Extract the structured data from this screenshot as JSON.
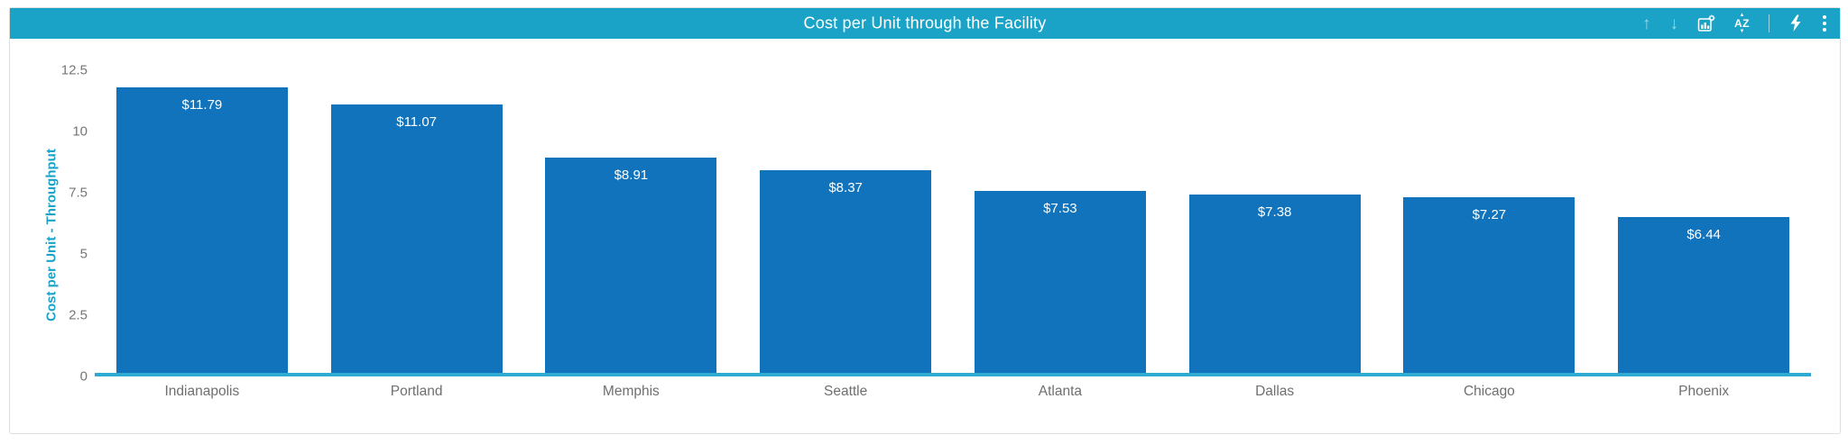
{
  "header": {
    "title": "Cost per Unit through the Facility",
    "toolbar": {
      "icons": [
        {
          "name": "sort-ascending-icon",
          "glyph": "↑",
          "disabled": true
        },
        {
          "name": "sort-descending-icon",
          "glyph": "↓",
          "disabled": true
        },
        {
          "name": "chart-settings-icon"
        },
        {
          "name": "alphabetical-sort-icon",
          "letters": "AZ",
          "caret_up": "▲",
          "caret_down": "▼"
        },
        {
          "name": "lightning-icon"
        },
        {
          "name": "kebab-menu-icon"
        }
      ]
    }
  },
  "chart_data": {
    "type": "bar",
    "title": "Cost per Unit through the Facility",
    "categories": [
      "Indianapolis",
      "Portland",
      "Memphis",
      "Seattle",
      "Atlanta",
      "Dallas",
      "Chicago",
      "Phoenix"
    ],
    "values": [
      11.79,
      11.07,
      8.91,
      8.37,
      7.53,
      7.38,
      7.27,
      6.44
    ],
    "value_labels": [
      "$11.79",
      "$11.07",
      "$8.91",
      "$8.37",
      "$7.53",
      "$7.38",
      "$7.27",
      "$6.44"
    ],
    "xlabel": "",
    "ylabel": "Cost per Unit - Throughput",
    "ylim": [
      0,
      12.5
    ],
    "yticks": [
      0,
      2.5,
      5,
      7.5,
      10,
      12.5
    ],
    "ytick_labels": [
      "0",
      "2.5",
      "5",
      "7.5",
      "10",
      "12.5"
    ],
    "grid": false,
    "legend": "none",
    "sort_order": "descending"
  },
  "colors": {
    "header_bg": "#1ba3c7",
    "bar_fill": "#1173bc",
    "axis_line": "#2fabd2",
    "y_title": "#1ba3c7",
    "tick_text": "#767676",
    "x_label_text": "#6f6f6f",
    "bar_value_text": "#ffffff"
  }
}
